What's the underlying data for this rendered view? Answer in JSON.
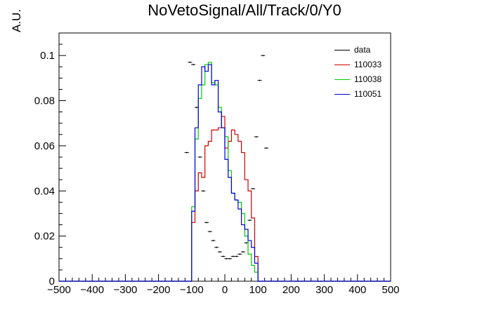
{
  "title": "NoVetoSignal/All/Track/0/Y0",
  "colors": {
    "data": "#000000",
    "110033": "#d00000",
    "110038": "#00cc00",
    "110051": "#0000dd"
  },
  "chart_data": {
    "type": "line",
    "title": "NoVetoSignal/All/Track/0/Y0",
    "xlabel": "",
    "ylabel": "A.U.",
    "xlim": [
      -500,
      500
    ],
    "ylim": [
      0,
      0.11
    ],
    "xticks": [
      "−500",
      "−400",
      "−300",
      "−200",
      "−100",
      "0",
      "100",
      "200",
      "300",
      "400",
      "500"
    ],
    "yticks": [
      "0",
      "0.02",
      "0.04",
      "0.06",
      "0.08",
      "0.1"
    ],
    "legend": {
      "position": "top-right",
      "entries": [
        "data",
        "110033",
        "110038",
        "110051"
      ]
    },
    "bin_edges_start": -500,
    "bin_width": 10,
    "series": [
      {
        "name": "data",
        "style": "points",
        "x": [
          -120,
          -110,
          -100,
          -90,
          -80,
          -70,
          -60,
          -50,
          -40,
          -30,
          -20,
          -10,
          0,
          10,
          20,
          30,
          40,
          50,
          60,
          70,
          80,
          90,
          100,
          110,
          120
        ],
        "y": [
          0.057,
          0.097,
          0.096,
          0.077,
          0.055,
          0.04,
          0.026,
          0.022,
          0.018,
          0.015,
          0.013,
          0.011,
          0.01,
          0.01,
          0.011,
          0.011,
          0.012,
          0.013,
          0.017,
          0.027,
          0.041,
          0.064,
          0.089,
          0.1,
          0.059
        ]
      },
      {
        "name": "110033",
        "style": "step",
        "x": [
          -100,
          -90,
          -80,
          -70,
          -60,
          -50,
          -40,
          -30,
          -20,
          -10,
          0,
          10,
          20,
          30,
          40,
          50,
          60,
          70,
          80,
          90
        ],
        "y": [
          0.026,
          0.04,
          0.048,
          0.046,
          0.06,
          0.062,
          0.067,
          0.067,
          0.068,
          0.073,
          0.059,
          0.062,
          0.067,
          0.065,
          0.062,
          0.057,
          0.045,
          0.04,
          0.028,
          0.011
        ]
      },
      {
        "name": "110038",
        "style": "step",
        "x": [
          -100,
          -90,
          -80,
          -70,
          -60,
          -50,
          -40,
          -30,
          -20,
          -10,
          0,
          10,
          20,
          30,
          40,
          50,
          60,
          70,
          80,
          90
        ],
        "y": [
          0.033,
          0.063,
          0.081,
          0.087,
          0.096,
          0.097,
          0.088,
          0.087,
          0.077,
          0.068,
          0.064,
          0.049,
          0.039,
          0.036,
          0.035,
          0.03,
          0.02,
          0.012,
          0.007,
          0.004
        ]
      },
      {
        "name": "110051",
        "style": "step",
        "x": [
          -100,
          -90,
          -80,
          -70,
          -60,
          -50,
          -40,
          -30,
          -20,
          -10,
          0,
          10,
          20,
          30,
          40,
          50,
          60,
          70,
          80,
          90
        ],
        "y": [
          0.031,
          0.068,
          0.087,
          0.095,
          0.093,
          0.096,
          0.087,
          0.089,
          0.075,
          0.068,
          0.054,
          0.046,
          0.039,
          0.036,
          0.032,
          0.025,
          0.023,
          0.018,
          0.015,
          0.008
        ]
      }
    ]
  }
}
